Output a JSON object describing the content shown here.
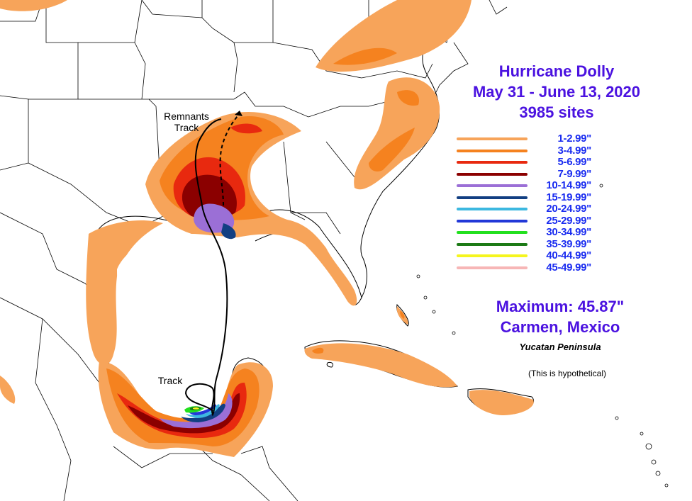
{
  "title": {
    "line1": "Hurricane Dolly",
    "line2": "May 31 - June 13, 2020",
    "line3": "3985 sites"
  },
  "legend": [
    {
      "label": "1-2.99\"",
      "color": "#f7a45a"
    },
    {
      "label": "3-4.99\"",
      "color": "#f5821f"
    },
    {
      "label": "5-6.99\"",
      "color": "#e8290f"
    },
    {
      "label": "7-9.99\"",
      "color": "#8b0000"
    },
    {
      "label": "10-14.99\"",
      "color": "#9b6fd6"
    },
    {
      "label": "15-19.99\"",
      "color": "#123f82"
    },
    {
      "label": "20-24.99\"",
      "color": "#3cb8e0"
    },
    {
      "label": "25-29.99\"",
      "color": "#2238d8"
    },
    {
      "label": "30-34.99\"",
      "color": "#22e01e"
    },
    {
      "label": "35-39.99\"",
      "color": "#1c7a16"
    },
    {
      "label": "40-44.99\"",
      "color": "#f5f51e"
    },
    {
      "label": "45-49.99\"",
      "color": "#f7b6b6"
    }
  ],
  "maximum": {
    "line1": "Maximum: 45.87\"",
    "line2": "Carmen, Mexico",
    "sub": "Yucatan Peninsula"
  },
  "note": "(This is hypothetical)",
  "track_labels": {
    "remnants_line1": "Remnants",
    "remnants_line2": "Track",
    "track": "Track"
  }
}
